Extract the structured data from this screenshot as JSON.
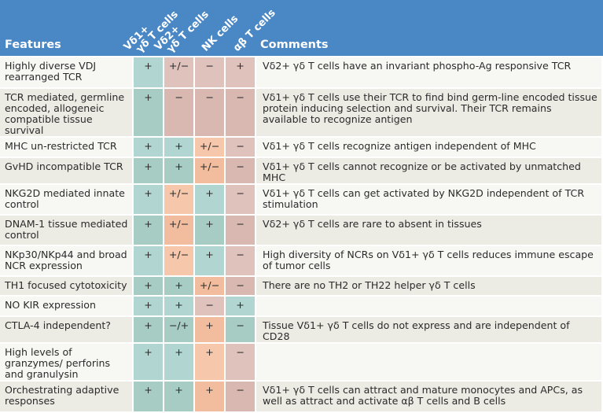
{
  "header": {
    "features": "Features",
    "comments": "Comments",
    "columns": [
      [
        "Vδ1+",
        "γδ T cells"
      ],
      [
        "Vδ2+",
        "γδ T cells"
      ],
      [
        "NK cells",
        ""
      ],
      [
        "αβ T cells",
        ""
      ]
    ]
  },
  "colors": {
    "header": "#4a87c5",
    "green": "#b1d5d0",
    "pink": "#e0c2bd",
    "orange": "#f7c7ac"
  },
  "rows": [
    {
      "feature": "Highly diverse VDJ rearranged TCR",
      "values": [
        "+",
        "+/−",
        "−",
        "+"
      ],
      "colors": [
        "g",
        "p",
        "p",
        "p"
      ],
      "comment": "Vδ2+ γδ T cells have an invariant phospho-Ag responsive TCR"
    },
    {
      "feature": "TCR mediated, germline encoded, allogeneic compatible tissue survival",
      "values": [
        "+",
        "−",
        "−",
        "−"
      ],
      "colors": [
        "g",
        "p",
        "p",
        "p"
      ],
      "comment": "Vδ1+ γδ T cells use their TCR to find bind germ-line encoded tissue protein inducing selection and survival. Their TCR remains available to recognize antigen"
    },
    {
      "feature": "MHC un-restricted TCR",
      "values": [
        "+",
        "+",
        "+/−",
        "−"
      ],
      "colors": [
        "g",
        "g",
        "o",
        "p"
      ],
      "comment": "Vδ1+ γδ T cells recognize antigen independent of MHC"
    },
    {
      "feature": "GvHD incompatible TCR",
      "values": [
        "+",
        "+",
        "+/−",
        "−"
      ],
      "colors": [
        "g",
        "g",
        "o",
        "p"
      ],
      "comment": "Vδ1+ γδ T cells cannot recognize or be activated by unmatched MHC"
    },
    {
      "feature": "NKG2D mediated innate control",
      "values": [
        "+",
        "+/−",
        "+",
        "−"
      ],
      "colors": [
        "g",
        "o",
        "g",
        "p"
      ],
      "comment": "Vδ1+ γδ T cells can get activated by NKG2D independent of TCR stimulation"
    },
    {
      "feature": "DNAM-1 tissue mediated control",
      "values": [
        "+",
        "+/−",
        "+",
        "−"
      ],
      "colors": [
        "g",
        "o",
        "g",
        "p"
      ],
      "comment": "Vδ2+ γδ T cells are rare to absent in tissues"
    },
    {
      "feature": "NKp30/NKp44 and broad NCR expression",
      "values": [
        "+",
        "+/−",
        "+",
        "−"
      ],
      "colors": [
        "g",
        "o",
        "g",
        "p"
      ],
      "comment": "High diversity of NCRs on Vδ1+ γδ T cells reduces immune escape of tumor cells"
    },
    {
      "feature": "TH1 focused cytotoxicity",
      "values": [
        "+",
        "+",
        "+/−",
        "−"
      ],
      "colors": [
        "g",
        "g",
        "o",
        "p"
      ],
      "comment": "There are no TH2 or TH22 helper γδ T cells"
    },
    {
      "feature": "NO KIR expression",
      "values": [
        "+",
        "+",
        "−",
        "+"
      ],
      "colors": [
        "g",
        "g",
        "p",
        "g"
      ],
      "comment": ""
    },
    {
      "feature": "CTLA-4 independent?",
      "values": [
        "+",
        "−/+",
        "+",
        "−"
      ],
      "colors": [
        "g",
        "g",
        "o",
        "g"
      ],
      "comment": "Tissue Vδ1+ γδ T cells do not express and are independent of CD28"
    },
    {
      "feature": "High levels of granzymes/ perforins and granulysin",
      "values": [
        "+",
        "+",
        "+",
        "−"
      ],
      "colors": [
        "g",
        "g",
        "o",
        "p"
      ],
      "comment": ""
    },
    {
      "feature": "Orchestrating adaptive responses",
      "values": [
        "+",
        "+",
        "+",
        "−"
      ],
      "colors": [
        "g",
        "g",
        "o",
        "p"
      ],
      "comment": "Vδ1+ γδ T cells can attract and mature monocytes and APCs, as well as attract and activate αβ T cells and B cells"
    }
  ]
}
